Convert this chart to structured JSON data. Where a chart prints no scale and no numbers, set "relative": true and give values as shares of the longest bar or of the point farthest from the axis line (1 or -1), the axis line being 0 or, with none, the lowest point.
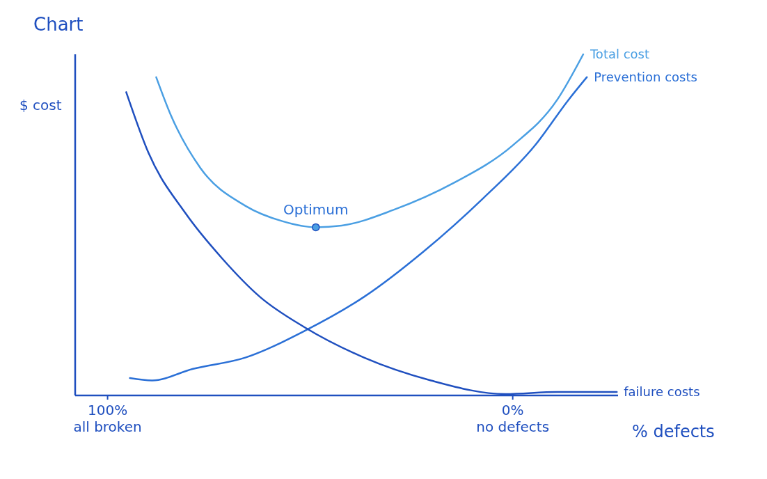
{
  "chart_data": {
    "type": "line",
    "title": "Chart",
    "xlabel": "% defects",
    "ylabel": "$ cost",
    "relative": true,
    "legend": false,
    "marker": "none",
    "line_style": "solid",
    "xlim": [
      108,
      -26
    ],
    "xticks": [
      {
        "value": 100,
        "label": "100%\nall broken"
      },
      {
        "value": 0,
        "label": "0%\nno defects"
      }
    ],
    "series": [
      {
        "name": "Total cost",
        "color": "#4a9fe3",
        "x": [
          88,
          84.4,
          77.1,
          66,
          56.9,
          48.6,
          42.2,
          29.4,
          14.7,
          0,
          -11,
          -17.4
        ],
        "values": [
          0.933,
          0.822,
          0.667,
          0.556,
          0.511,
          0.493,
          0.498,
          0.544,
          0.622,
          0.733,
          0.867,
          1.0
        ]
      },
      {
        "name": "Prevention costs",
        "color": "#2a6fd6",
        "x": [
          94.5,
          89,
          78.9,
          66,
          51.4,
          36.7,
          22,
          7.3,
          -5.5,
          -13.8,
          -18.3
        ],
        "values": [
          0.051,
          0.044,
          0.078,
          0.111,
          0.189,
          0.289,
          0.422,
          0.578,
          0.733,
          0.867,
          0.933
        ]
      },
      {
        "name": "failure costs",
        "color": "#1f4fbf",
        "x": [
          95.4,
          89.9,
          80.7,
          71.6,
          62.4,
          51.4,
          36.7,
          20.2,
          1.8,
          -11,
          -25.7
        ],
        "values": [
          0.889,
          0.711,
          0.533,
          0.4,
          0.289,
          0.2,
          0.111,
          0.044,
          0.004,
          0.01,
          0.01
        ]
      }
    ],
    "annotations": [
      {
        "text": "Optimum",
        "x": 48.6,
        "y": 0.493
      }
    ]
  }
}
